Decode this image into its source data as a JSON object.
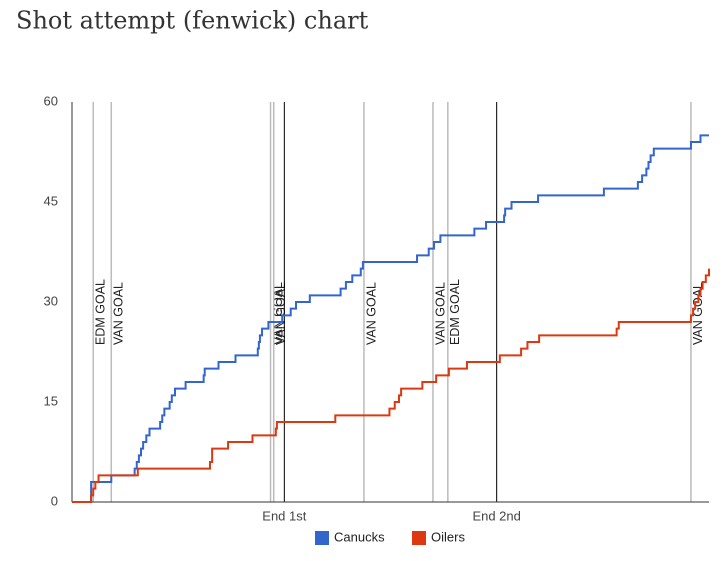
{
  "chart_data": {
    "type": "step-line",
    "title": "Shot attempt (fenwick) chart",
    "xlim": [
      0,
      60
    ],
    "ylim": [
      0,
      60
    ],
    "yticks": [
      0,
      15,
      30,
      45,
      60
    ],
    "xticks": [
      {
        "value": 20,
        "label": "End 1st"
      },
      {
        "value": 40,
        "label": "End 2nd"
      }
    ],
    "annotations": [
      {
        "x": 2.0,
        "label": "EDM GOAL"
      },
      {
        "x": 3.7,
        "label": "VAN GOAL"
      },
      {
        "x": 18.7,
        "label": "VAN GOAL"
      },
      {
        "x": 19.0,
        "label": "VAN GOAL"
      },
      {
        "x": 27.5,
        "label": "VAN GOAL"
      },
      {
        "x": 34.0,
        "label": "VAN GOAL"
      },
      {
        "x": 35.4,
        "label": "EDM GOAL"
      },
      {
        "x": 58.3,
        "label": "VAN GOAL"
      }
    ],
    "series": [
      {
        "name": "Canucks",
        "color": "#3366cc",
        "x": [
          0,
          1.8,
          3.7,
          5.9,
          6.1,
          6.3,
          6.5,
          6.7,
          7.0,
          7.3,
          8.3,
          8.5,
          8.7,
          9.2,
          9.4,
          9.7,
          10.7,
          12.4,
          12.5,
          13.8,
          15.4,
          17.5,
          17.6,
          17.7,
          17.9,
          18.5,
          19.8,
          20.6,
          21.1,
          22.4,
          25.3,
          25.8,
          26.4,
          27.2,
          27.4,
          32.5,
          33.6,
          34.1,
          34.7,
          37.9,
          39.0,
          40.7,
          40.8,
          41.4,
          43.9,
          50.1,
          53.3,
          53.7,
          54.1,
          54.3,
          54.5,
          54.8,
          58.3,
          59.2,
          60
        ],
        "values": [
          0,
          3,
          4,
          5,
          6,
          7,
          8,
          9,
          10,
          11,
          12,
          13,
          14,
          15,
          16,
          17,
          18,
          19,
          20,
          21,
          22,
          23,
          24,
          25,
          26,
          27,
          28,
          29,
          30,
          31,
          32,
          33,
          34,
          35,
          36,
          37,
          38,
          39,
          40,
          41,
          42,
          43,
          44,
          45,
          46,
          47,
          48,
          49,
          50,
          51,
          52,
          53,
          54,
          55,
          55
        ]
      },
      {
        "name": "Oilers",
        "color": "#dc3912",
        "x": [
          0,
          1.8,
          2.0,
          2.2,
          2.5,
          6.2,
          13.0,
          13.2,
          14.7,
          17.0,
          19.2,
          19.3,
          24.8,
          29.9,
          30.4,
          30.8,
          31.0,
          33.0,
          34.3,
          35.5,
          37.2,
          40.3,
          42.3,
          42.9,
          44.0,
          51.3,
          51.5,
          58.3,
          58.5,
          58.7,
          59.0,
          59.2,
          59.4,
          59.7,
          60.0
        ],
        "values": [
          0,
          1,
          2,
          3,
          4,
          5,
          6,
          8,
          9,
          10,
          11,
          12,
          13,
          14,
          15,
          16,
          17,
          18,
          19,
          20,
          21,
          22,
          23,
          24,
          25,
          26,
          27,
          28,
          29,
          30,
          31,
          32,
          33,
          34,
          35
        ]
      }
    ]
  }
}
